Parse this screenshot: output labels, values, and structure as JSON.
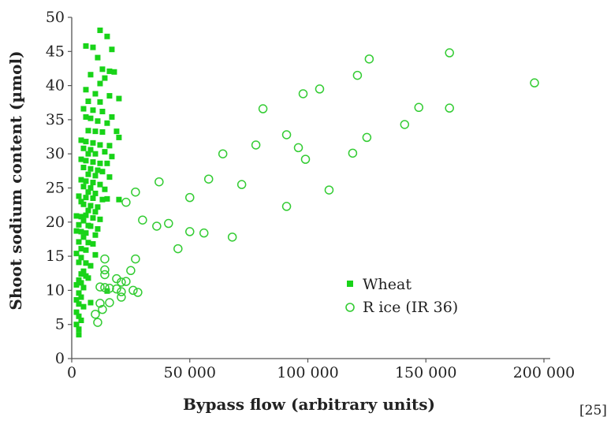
{
  "chart_data": {
    "type": "scatter",
    "xlabel": "Bypass flow (arbitrary units)",
    "ylabel": "Shoot sodium content (µmol)",
    "xlim": [
      0,
      200000
    ],
    "ylim": [
      0,
      50
    ],
    "x_ticks": [
      0,
      50000,
      100000,
      150000,
      200000
    ],
    "x_tick_labels": [
      "0",
      "50 000",
      "100 000",
      "150 000",
      "200 000"
    ],
    "y_ticks": [
      0,
      5,
      10,
      15,
      20,
      25,
      30,
      35,
      40,
      45,
      50
    ],
    "y_tick_labels": [
      "0",
      "5",
      "10",
      "15",
      "20",
      "25",
      "30",
      "35",
      "40",
      "45",
      "50"
    ],
    "grid": false,
    "legend_position": "center-right",
    "reference": "[25]",
    "series": [
      {
        "name": "Wheat",
        "marker": "filled-square",
        "color": "#18d318",
        "points": [
          [
            12000,
            48.1
          ],
          [
            15000,
            47.2
          ],
          [
            6000,
            45.8
          ],
          [
            9000,
            45.6
          ],
          [
            17000,
            45.3
          ],
          [
            11000,
            44.1
          ],
          [
            13000,
            42.4
          ],
          [
            16000,
            42.1
          ],
          [
            18000,
            42.0
          ],
          [
            8000,
            41.6
          ],
          [
            14000,
            41.1
          ],
          [
            12000,
            40.3
          ],
          [
            6000,
            39.4
          ],
          [
            10000,
            38.8
          ],
          [
            16000,
            38.5
          ],
          [
            20000,
            38.1
          ],
          [
            7000,
            37.7
          ],
          [
            12000,
            37.6
          ],
          [
            5000,
            36.6
          ],
          [
            9000,
            36.4
          ],
          [
            13000,
            36.2
          ],
          [
            17000,
            35.4
          ],
          [
            6000,
            35.4
          ],
          [
            8000,
            35.2
          ],
          [
            11000,
            34.8
          ],
          [
            15000,
            34.5
          ],
          [
            7000,
            33.4
          ],
          [
            10000,
            33.3
          ],
          [
            19000,
            33.3
          ],
          [
            13000,
            33.2
          ],
          [
            20000,
            32.4
          ],
          [
            4000,
            32.0
          ],
          [
            6000,
            31.8
          ],
          [
            9000,
            31.6
          ],
          [
            12000,
            31.3
          ],
          [
            16000,
            31.2
          ],
          [
            5000,
            30.8
          ],
          [
            8000,
            30.6
          ],
          [
            14000,
            30.3
          ],
          [
            7000,
            30.0
          ],
          [
            10000,
            30.0
          ],
          [
            17000,
            29.6
          ],
          [
            4000,
            29.2
          ],
          [
            6000,
            29.0
          ],
          [
            9000,
            28.8
          ],
          [
            12000,
            28.6
          ],
          [
            15000,
            28.6
          ],
          [
            5000,
            28.0
          ],
          [
            8000,
            27.8
          ],
          [
            11000,
            27.6
          ],
          [
            13000,
            27.4
          ],
          [
            7000,
            27.0
          ],
          [
            10000,
            26.8
          ],
          [
            16000,
            26.6
          ],
          [
            4000,
            26.2
          ],
          [
            6000,
            26.0
          ],
          [
            9000,
            25.8
          ],
          [
            12000,
            25.5
          ],
          [
            5000,
            25.2
          ],
          [
            8000,
            25.0
          ],
          [
            14000,
            24.8
          ],
          [
            7000,
            24.4
          ],
          [
            10000,
            24.2
          ],
          [
            3000,
            23.8
          ],
          [
            6000,
            23.6
          ],
          [
            9000,
            23.5
          ],
          [
            15000,
            23.4
          ],
          [
            13000,
            23.3
          ],
          [
            20000,
            23.3
          ],
          [
            4000,
            23.0
          ],
          [
            5000,
            22.6
          ],
          [
            8000,
            22.4
          ],
          [
            11000,
            22.2
          ],
          [
            7000,
            21.7
          ],
          [
            10000,
            21.5
          ],
          [
            6000,
            21.0
          ],
          [
            2000,
            20.9
          ],
          [
            4000,
            20.8
          ],
          [
            9000,
            20.6
          ],
          [
            12000,
            20.4
          ],
          [
            5000,
            20.2
          ],
          [
            3000,
            19.6
          ],
          [
            7000,
            19.5
          ],
          [
            8000,
            19.4
          ],
          [
            11000,
            19.0
          ],
          [
            2000,
            18.7
          ],
          [
            4000,
            18.6
          ],
          [
            6000,
            18.4
          ],
          [
            10000,
            18.1
          ],
          [
            5000,
            17.8
          ],
          [
            3000,
            17.1
          ],
          [
            7000,
            17.0
          ],
          [
            9000,
            16.8
          ],
          [
            4000,
            16.1
          ],
          [
            6000,
            15.9
          ],
          [
            2000,
            15.4
          ],
          [
            10000,
            15.2
          ],
          [
            4000,
            14.8
          ],
          [
            3000,
            14.1
          ],
          [
            6000,
            14.0
          ],
          [
            8000,
            13.6
          ],
          [
            5000,
            12.8
          ],
          [
            4000,
            12.4
          ],
          [
            6000,
            12.1
          ],
          [
            7000,
            11.8
          ],
          [
            3000,
            11.5
          ],
          [
            4000,
            11.1
          ],
          [
            2000,
            10.8
          ],
          [
            5000,
            10.4
          ],
          [
            3000,
            9.6
          ],
          [
            15000,
            9.9
          ],
          [
            4000,
            9.0
          ],
          [
            2000,
            8.6
          ],
          [
            3000,
            8.0
          ],
          [
            8000,
            8.2
          ],
          [
            5000,
            7.6
          ],
          [
            2000,
            6.8
          ],
          [
            3000,
            6.2
          ],
          [
            4000,
            5.6
          ],
          [
            2000,
            5.0
          ],
          [
            3000,
            4.3
          ],
          [
            3000,
            3.5
          ]
        ]
      },
      {
        "name": "R ice (IR 36)",
        "marker": "open-circle",
        "color": "#33cc33",
        "points": [
          [
            160000,
            44.8
          ],
          [
            126000,
            43.9
          ],
          [
            196000,
            40.4
          ],
          [
            121000,
            41.5
          ],
          [
            105000,
            39.5
          ],
          [
            98000,
            38.8
          ],
          [
            81000,
            36.6
          ],
          [
            147000,
            36.8
          ],
          [
            160000,
            36.7
          ],
          [
            141000,
            34.3
          ],
          [
            91000,
            32.8
          ],
          [
            125000,
            32.4
          ],
          [
            78000,
            31.3
          ],
          [
            96000,
            30.9
          ],
          [
            119000,
            30.1
          ],
          [
            64000,
            30.0
          ],
          [
            99000,
            29.2
          ],
          [
            37000,
            25.9
          ],
          [
            58000,
            26.3
          ],
          [
            72000,
            25.5
          ],
          [
            109000,
            24.7
          ],
          [
            27000,
            24.4
          ],
          [
            50000,
            23.6
          ],
          [
            23000,
            22.9
          ],
          [
            91000,
            22.3
          ],
          [
            30000,
            20.3
          ],
          [
            41000,
            19.8
          ],
          [
            36000,
            19.4
          ],
          [
            50000,
            18.6
          ],
          [
            56000,
            18.4
          ],
          [
            68000,
            17.8
          ],
          [
            45000,
            16.1
          ],
          [
            14000,
            14.6
          ],
          [
            27000,
            14.6
          ],
          [
            14000,
            13.0
          ],
          [
            14000,
            12.3
          ],
          [
            25000,
            12.9
          ],
          [
            19000,
            11.7
          ],
          [
            23000,
            11.3
          ],
          [
            21000,
            11.2
          ],
          [
            12000,
            10.5
          ],
          [
            14000,
            10.4
          ],
          [
            16000,
            10.3
          ],
          [
            19000,
            10.2
          ],
          [
            26000,
            10.0
          ],
          [
            28000,
            9.7
          ],
          [
            21000,
            9.8
          ],
          [
            21000,
            9.0
          ],
          [
            16000,
            8.2
          ],
          [
            12000,
            8.1
          ],
          [
            10000,
            6.5
          ],
          [
            11000,
            5.3
          ],
          [
            13000,
            7.2
          ]
        ]
      }
    ]
  }
}
